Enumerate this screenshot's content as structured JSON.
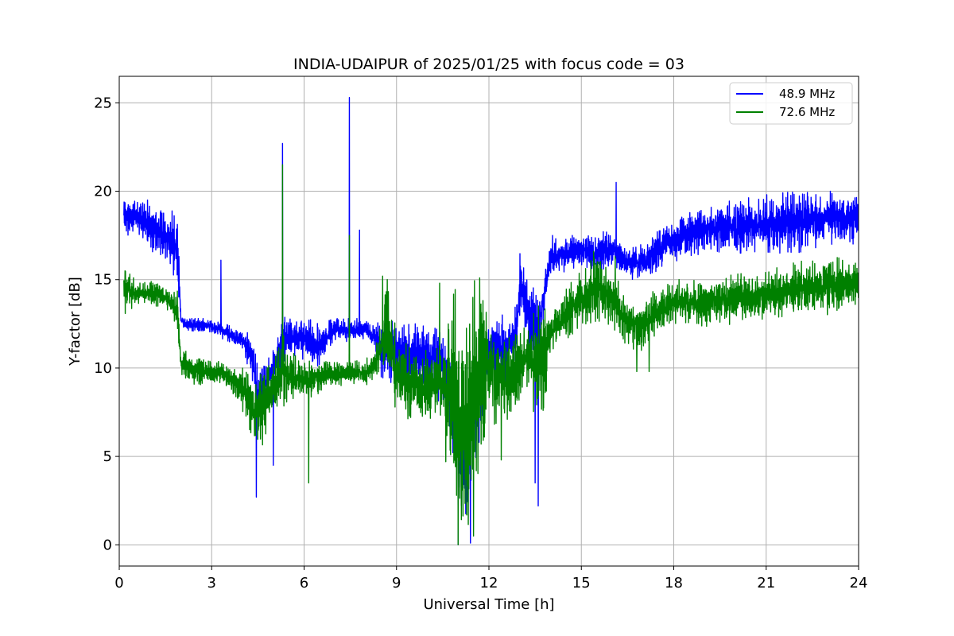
{
  "chart_data": {
    "type": "line",
    "title": "INDIA-UDAIPUR of 2025/01/25 with focus code = 03",
    "xlabel": "Universal Time [h]",
    "ylabel": "Y-factor [dB]",
    "xlim": [
      0,
      24
    ],
    "ylim": [
      -1.2,
      26.5
    ],
    "xticks": [
      0,
      3,
      6,
      9,
      12,
      15,
      18,
      21,
      24
    ],
    "yticks": [
      0,
      5,
      10,
      15,
      20,
      25
    ],
    "grid": true,
    "legend_position": "top-right",
    "series": [
      {
        "name": "48.9 MHz",
        "color": "#0000ff",
        "envelope": {
          "x": [
            0.15,
            0.5,
            1.0,
            1.5,
            1.9,
            2.0,
            2.1,
            2.5,
            3.0,
            3.5,
            4.0,
            4.3,
            4.5,
            4.8,
            5.0,
            5.3,
            5.5,
            6.0,
            6.5,
            7.0,
            7.5,
            8.0,
            8.3,
            8.5,
            9.0,
            9.5,
            10.0,
            10.5,
            10.9,
            11.1,
            11.3,
            11.5,
            12.0,
            12.5,
            12.9,
            13.0,
            13.3,
            13.6,
            13.9,
            14.0,
            14.5,
            15.0,
            15.5,
            16.0,
            16.5,
            17.0,
            17.5,
            18.0,
            18.5,
            19.0,
            20.0,
            21.0,
            22.0,
            23.0,
            24.0
          ],
          "low": [
            17.5,
            17.5,
            16.5,
            16.0,
            14.5,
            12.5,
            12.2,
            12.0,
            12.0,
            11.5,
            11.0,
            9.5,
            7.0,
            8.0,
            9.0,
            10.0,
            10.5,
            10.5,
            10.0,
            11.5,
            11.5,
            11.5,
            11.0,
            9.5,
            9.0,
            9.0,
            8.5,
            8.0,
            4.0,
            2.0,
            1.0,
            4.0,
            9.0,
            9.0,
            10.0,
            13.0,
            11.0,
            10.5,
            14.0,
            15.0,
            15.5,
            15.8,
            15.5,
            15.5,
            15.0,
            15.0,
            15.5,
            16.0,
            16.3,
            16.5,
            16.5,
            16.5,
            16.5,
            17.0,
            17.0
          ],
          "high": [
            20.0,
            19.5,
            19.5,
            19.0,
            19.0,
            13.0,
            12.8,
            12.8,
            12.8,
            12.5,
            12.0,
            12.0,
            10.0,
            10.5,
            11.0,
            13.0,
            13.0,
            13.0,
            12.5,
            12.8,
            12.8,
            12.8,
            12.5,
            13.0,
            12.5,
            12.5,
            12.5,
            12.0,
            10.0,
            8.0,
            9.0,
            11.0,
            13.0,
            13.0,
            13.5,
            16.5,
            15.0,
            14.0,
            16.5,
            17.5,
            17.5,
            17.5,
            17.5,
            18.0,
            17.0,
            17.0,
            18.0,
            18.5,
            19.0,
            19.2,
            19.5,
            19.8,
            20.0,
            20.0,
            20.0
          ]
        },
        "spikes": [
          [
            3.3,
            16.1
          ],
          [
            4.45,
            2.7
          ],
          [
            5.0,
            4.5
          ],
          [
            5.3,
            22.7
          ],
          [
            7.47,
            25.3
          ],
          [
            7.8,
            17.8
          ],
          [
            11.0,
            0.0
          ],
          [
            11.4,
            0.1
          ],
          [
            13.5,
            3.5
          ],
          [
            13.6,
            2.2
          ],
          [
            16.13,
            20.5
          ]
        ]
      },
      {
        "name": "72.6 MHz",
        "color": "#008000",
        "envelope": {
          "x": [
            0.15,
            0.5,
            1.0,
            1.5,
            1.9,
            2.0,
            2.1,
            2.5,
            3.0,
            3.5,
            4.0,
            4.3,
            4.5,
            4.8,
            5.0,
            5.3,
            5.5,
            6.0,
            6.5,
            7.0,
            7.5,
            8.0,
            8.3,
            8.5,
            8.7,
            9.0,
            9.5,
            10.0,
            10.5,
            10.9,
            11.1,
            11.3,
            11.5,
            12.0,
            12.5,
            12.9,
            13.0,
            13.3,
            13.6,
            13.9,
            14.0,
            14.5,
            15.0,
            15.5,
            16.0,
            16.5,
            17.0,
            17.5,
            18.0,
            18.5,
            19.0,
            20.0,
            21.0,
            22.0,
            23.0,
            24.0
          ],
          "low": [
            13.0,
            13.5,
            13.5,
            13.5,
            12.0,
            9.5,
            9.5,
            9.0,
            9.0,
            9.0,
            7.5,
            6.0,
            5.0,
            6.0,
            7.5,
            7.5,
            8.0,
            8.0,
            8.5,
            9.0,
            9.0,
            9.0,
            9.5,
            10.0,
            9.0,
            7.5,
            7.0,
            7.0,
            6.5,
            2.0,
            0.0,
            1.0,
            2.0,
            7.0,
            6.5,
            7.0,
            8.0,
            9.0,
            6.0,
            9.0,
            11.0,
            11.5,
            12.5,
            12.5,
            12.0,
            11.0,
            11.0,
            12.0,
            12.5,
            12.5,
            12.3,
            12.5,
            12.8,
            13.0,
            13.0,
            13.5
          ],
          "high": [
            16.0,
            15.0,
            15.0,
            14.5,
            14.5,
            11.0,
            11.0,
            10.8,
            10.5,
            10.2,
            10.0,
            9.5,
            9.5,
            10.0,
            10.5,
            12.0,
            11.0,
            10.5,
            10.5,
            10.3,
            10.5,
            10.5,
            11.0,
            12.5,
            15.0,
            12.0,
            11.0,
            11.0,
            12.0,
            14.5,
            12.0,
            14.5,
            15.0,
            14.0,
            12.0,
            12.0,
            12.5,
            12.5,
            14.0,
            14.0,
            13.0,
            14.5,
            15.5,
            16.5,
            16.0,
            14.0,
            14.0,
            14.5,
            15.0,
            15.0,
            15.0,
            15.3,
            15.5,
            16.0,
            16.3,
            16.2
          ]
        },
        "spikes": [
          [
            5.3,
            21.5
          ],
          [
            6.15,
            3.5
          ],
          [
            7.47,
            17.5
          ],
          [
            8.55,
            15.2
          ],
          [
            8.7,
            15.0
          ],
          [
            10.4,
            14.8
          ],
          [
            10.6,
            4.7
          ],
          [
            11.0,
            0.0
          ],
          [
            11.5,
            0.5
          ],
          [
            11.7,
            15.1
          ],
          [
            12.4,
            4.8
          ],
          [
            15.4,
            16.6
          ],
          [
            16.1,
            16.3
          ],
          [
            16.8,
            9.8
          ],
          [
            17.2,
            9.8
          ]
        ]
      }
    ]
  }
}
